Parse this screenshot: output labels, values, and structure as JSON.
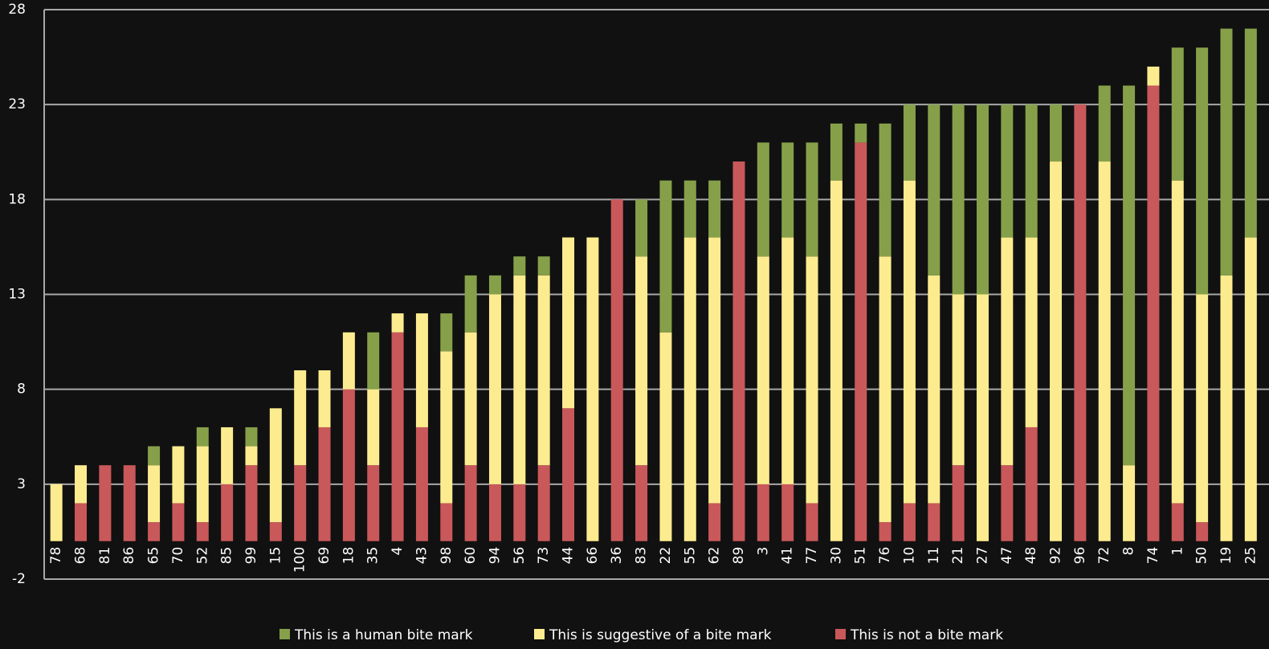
{
  "chart_data": {
    "type": "stacked_bar",
    "categories": [
      "78",
      "68",
      "81",
      "86",
      "65",
      "70",
      "52",
      "85",
      "99",
      "15",
      "100",
      "69",
      "18",
      "35",
      "4",
      "43",
      "98",
      "60",
      "94",
      "56",
      "73",
      "44",
      "66",
      "36",
      "83",
      "22",
      "55",
      "62",
      "89",
      "3",
      "41",
      "77",
      "30",
      "51",
      "76",
      "10",
      "11",
      "21",
      "27",
      "47",
      "48",
      "92",
      "96",
      "72",
      "8",
      "74",
      "1",
      "50",
      "19",
      "25"
    ],
    "series": [
      {
        "name": "This is not a bite mark",
        "color": "#c9585a",
        "values": [
          0,
          2,
          4,
          4,
          1,
          2,
          1,
          3,
          4,
          1,
          4,
          6,
          8,
          4,
          11,
          6,
          2,
          4,
          3,
          3,
          4,
          7,
          0,
          18,
          4,
          0,
          0,
          2,
          20,
          3,
          3,
          2,
          0,
          21,
          1,
          2,
          2,
          4,
          0,
          4,
          6,
          0,
          23,
          0,
          0,
          24,
          2,
          1,
          0,
          0
        ]
      },
      {
        "name": "This is suggestive of a bite mark",
        "color": "#fdec8f",
        "values": [
          3,
          2,
          0,
          0,
          3,
          3,
          4,
          3,
          1,
          6,
          5,
          3,
          3,
          4,
          1,
          6,
          8,
          7,
          10,
          11,
          10,
          9,
          16,
          0,
          11,
          11,
          16,
          14,
          0,
          12,
          13,
          13,
          19,
          0,
          14,
          17,
          12,
          9,
          13,
          12,
          10,
          20,
          0,
          20,
          4,
          1,
          17,
          12,
          14,
          16
        ]
      },
      {
        "name": "This is a human bite mark",
        "color": "#86a04a",
        "values": [
          0,
          0,
          0,
          0,
          1,
          0,
          1,
          0,
          1,
          0,
          0,
          0,
          0,
          3,
          0,
          0,
          2,
          3,
          1,
          1,
          1,
          0,
          0,
          0,
          3,
          8,
          3,
          3,
          0,
          6,
          5,
          6,
          3,
          1,
          7,
          4,
          9,
          10,
          10,
          7,
          7,
          3,
          0,
          4,
          20,
          0,
          7,
          13,
          13,
          11
        ]
      }
    ],
    "ylim": [
      -2,
      28
    ],
    "yticks": [
      -2,
      3,
      8,
      13,
      18,
      23,
      28
    ],
    "grid": true,
    "legend": "bottom"
  }
}
